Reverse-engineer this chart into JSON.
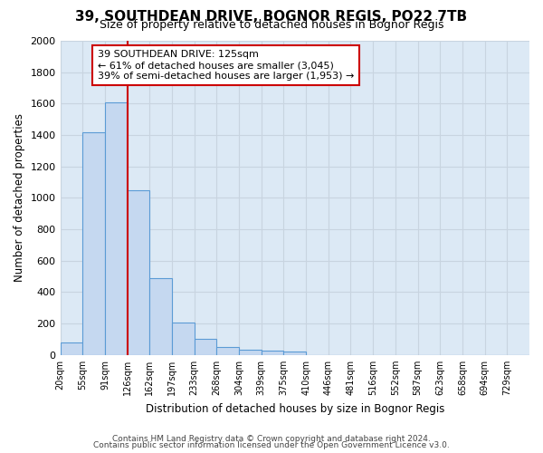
{
  "title": "39, SOUTHDEAN DRIVE, BOGNOR REGIS, PO22 7TB",
  "subtitle": "Size of property relative to detached houses in Bognor Regis",
  "xlabel": "Distribution of detached houses by size in Bognor Regis",
  "ylabel": "Number of detached properties",
  "bin_labels": [
    "20sqm",
    "55sqm",
    "91sqm",
    "126sqm",
    "162sqm",
    "197sqm",
    "233sqm",
    "268sqm",
    "304sqm",
    "339sqm",
    "375sqm",
    "410sqm",
    "446sqm",
    "481sqm",
    "516sqm",
    "552sqm",
    "587sqm",
    "623sqm",
    "658sqm",
    "694sqm",
    "729sqm"
  ],
  "bar_values": [
    80,
    1420,
    1610,
    1050,
    490,
    205,
    105,
    50,
    35,
    25,
    20,
    0,
    0,
    0,
    0,
    0,
    0,
    0,
    0,
    0,
    0
  ],
  "bar_color": "#c5d8f0",
  "bar_edge_color": "#5b9bd5",
  "grid_color": "#c8d4e0",
  "vline_x_index": 3,
  "vline_color": "#cc0000",
  "annotation_line1": "39 SOUTHDEAN DRIVE: 125sqm",
  "annotation_line2": "← 61% of detached houses are smaller (3,045)",
  "annotation_line3": "39% of semi-detached houses are larger (1,953) →",
  "annotation_box_color": "#ffffff",
  "annotation_box_edge_color": "#cc0000",
  "ylim": [
    0,
    2000
  ],
  "yticks": [
    0,
    200,
    400,
    600,
    800,
    1000,
    1200,
    1400,
    1600,
    1800,
    2000
  ],
  "footer_line1": "Contains HM Land Registry data © Crown copyright and database right 2024.",
  "footer_line2": "Contains public sector information licensed under the Open Government Licence v3.0.",
  "bg_color": "#ffffff",
  "plot_bg_color": "#dce9f5"
}
